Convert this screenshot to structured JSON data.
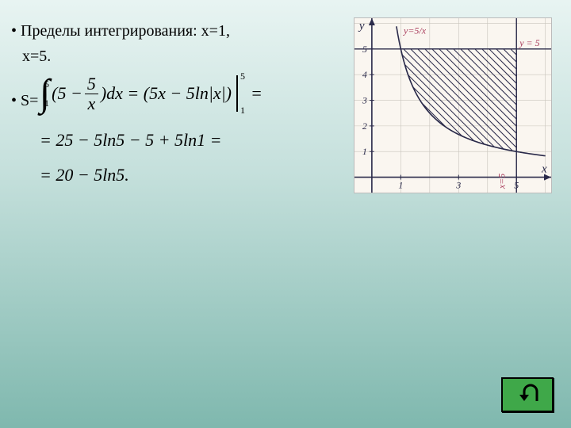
{
  "text": {
    "bullet1a": "• Пределы интегрирования: x=1,",
    "bullet1b": "x=5.",
    "bullet2": "• S="
  },
  "formula": {
    "int_lower": "1",
    "int_upper": "5",
    "row1_left": "(5 −",
    "frac_num": "5",
    "frac_den": "x",
    "row1_right1": ")dx = (5x − 5ln|x|)",
    "eval_lower": "1",
    "eval_upper": "5",
    "row1_right2": "=",
    "row2": "= 25 − 5ln5 − 5 + 5ln1 =",
    "row3": "= 20 − 5ln5."
  },
  "graph": {
    "type": "line-with-shaded-region",
    "background_color": "#faf6f0",
    "axis_color": "#2a2a4a",
    "grid_color": "#c8c4bc",
    "curve_color": "#2a2a4a",
    "hatch_color": "#2a2a4a",
    "annotation_color": "#a83a5a",
    "axis_label_color": "#2a2a4a",
    "font_family": "cursive",
    "xlim": [
      -0.6,
      6.2
    ],
    "ylim": [
      -0.6,
      6.2
    ],
    "x_ticks": [
      1,
      3,
      5
    ],
    "y_ticks": [
      1,
      2,
      3,
      4,
      5
    ],
    "x_axis_label": "x",
    "y_axis_label": "y",
    "curve": {
      "expr": "5/x",
      "x_from": 0.85,
      "x_to": 6.0
    },
    "horiz_line": {
      "y": 5,
      "x_from": -0.6,
      "x_to": 6.2,
      "label": "y = 5"
    },
    "vert_line": {
      "x": 5,
      "y_from": -0.6,
      "y_to": 6.2,
      "label": "x=5"
    },
    "curve_label": "y=5/x",
    "shaded_region": {
      "x_from": 1,
      "x_to": 5,
      "y_top": 5,
      "y_bottom": "5/x"
    }
  },
  "button": {
    "name": "return-button",
    "color": "#3fa849",
    "border": "#000000"
  }
}
